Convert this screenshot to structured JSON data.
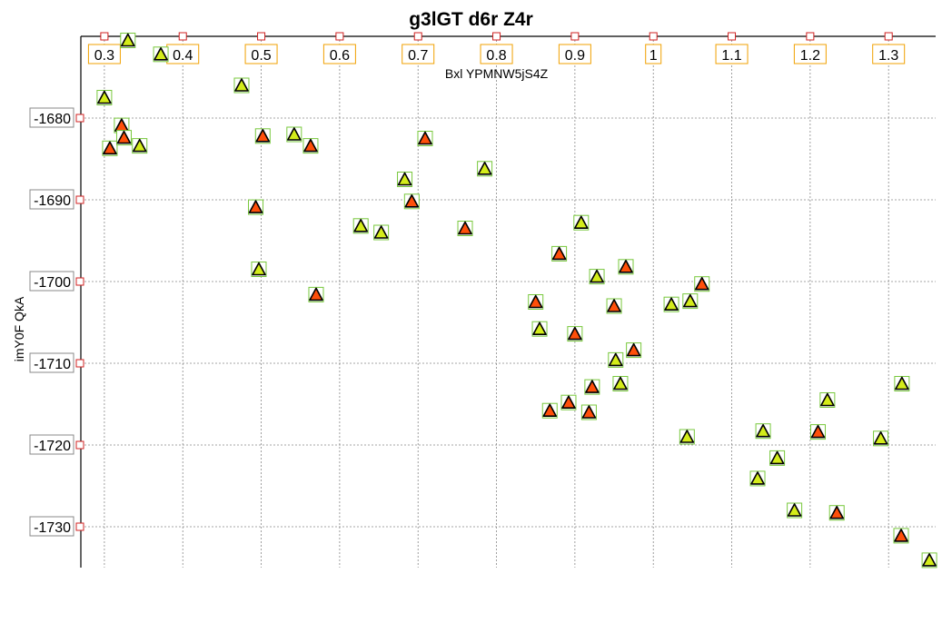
{
  "chart_data": {
    "type": "scatter",
    "title": "g3lGT d6r Z4r",
    "xlabel": "Bxl YPMNW5jS4Z",
    "ylabel": "imY0F QkA",
    "x_axis_position": "top",
    "xlim": [
      0.27,
      1.36
    ],
    "ylim": [
      -1735,
      -1670
    ],
    "x_ticks": [
      0.3,
      0.4,
      0.5,
      0.6,
      0.7,
      0.8,
      0.9,
      1.0,
      1.1,
      1.2,
      1.3
    ],
    "x_tick_labels": [
      "0.3",
      "0.4",
      "0.5",
      "0.6",
      "0.7",
      "0.8",
      "0.9",
      "1",
      "1.1",
      "1.2",
      "1.3"
    ],
    "y_ticks": [
      -1680,
      -1690,
      -1700,
      -1710,
      -1720,
      -1730
    ],
    "y_tick_labels": [
      "-1680",
      "-1690",
      "-1700",
      "-1710",
      "-1720",
      "-1730"
    ],
    "grid": true,
    "legend": "none",
    "colors": {
      "series_a": "#d4ec1a",
      "series_b": "#ff4f0a",
      "marker_box_border": "#78c83c",
      "tick_box_border_x": "#f0a000",
      "tick_box_border_y": "#888888",
      "tick_mark": "#d02020",
      "grid": "#888888"
    },
    "series": [
      {
        "color": "#d4ec1a",
        "points": [
          [
            0.3,
            -1677.5
          ],
          [
            0.33,
            -1670.5
          ],
          [
            0.345,
            -1683.4
          ],
          [
            0.372,
            -1672.2
          ],
          [
            0.475,
            -1676.0
          ],
          [
            0.497,
            -1698.5
          ],
          [
            0.542,
            -1682.0
          ],
          [
            0.627,
            -1693.2
          ],
          [
            0.653,
            -1694.0
          ],
          [
            0.683,
            -1687.5
          ],
          [
            0.785,
            -1686.2
          ],
          [
            0.855,
            -1705.8
          ],
          [
            0.908,
            -1692.8
          ],
          [
            0.928,
            -1699.4
          ],
          [
            0.952,
            -1709.6
          ],
          [
            0.958,
            -1712.5
          ],
          [
            1.023,
            -1702.8
          ],
          [
            1.047,
            -1702.4
          ],
          [
            1.043,
            -1719.0
          ],
          [
            1.133,
            -1724.1
          ],
          [
            1.14,
            -1718.3
          ],
          [
            1.158,
            -1721.6
          ],
          [
            1.18,
            -1728.0
          ],
          [
            1.222,
            -1714.5
          ],
          [
            1.29,
            -1719.2
          ],
          [
            1.317,
            -1712.5
          ],
          [
            1.352,
            -1734.1
          ]
        ]
      },
      {
        "color": "#ff4f0a",
        "points": [
          [
            0.307,
            -1683.7
          ],
          [
            0.322,
            -1680.9
          ],
          [
            0.325,
            -1682.4
          ],
          [
            0.493,
            -1690.9
          ],
          [
            0.502,
            -1682.2
          ],
          [
            0.563,
            -1683.4
          ],
          [
            0.57,
            -1701.6
          ],
          [
            0.692,
            -1690.2
          ],
          [
            0.709,
            -1682.5
          ],
          [
            0.76,
            -1693.5
          ],
          [
            0.85,
            -1702.5
          ],
          [
            0.88,
            -1696.6
          ],
          [
            0.868,
            -1715.8
          ],
          [
            0.892,
            -1714.8
          ],
          [
            0.9,
            -1706.4
          ],
          [
            0.918,
            -1716.0
          ],
          [
            0.922,
            -1712.9
          ],
          [
            0.95,
            -1703.0
          ],
          [
            0.965,
            -1698.2
          ],
          [
            0.975,
            -1708.4
          ],
          [
            1.062,
            -1700.3
          ],
          [
            1.21,
            -1718.4
          ],
          [
            1.234,
            -1728.3
          ],
          [
            1.316,
            -1731.1
          ]
        ]
      }
    ]
  }
}
